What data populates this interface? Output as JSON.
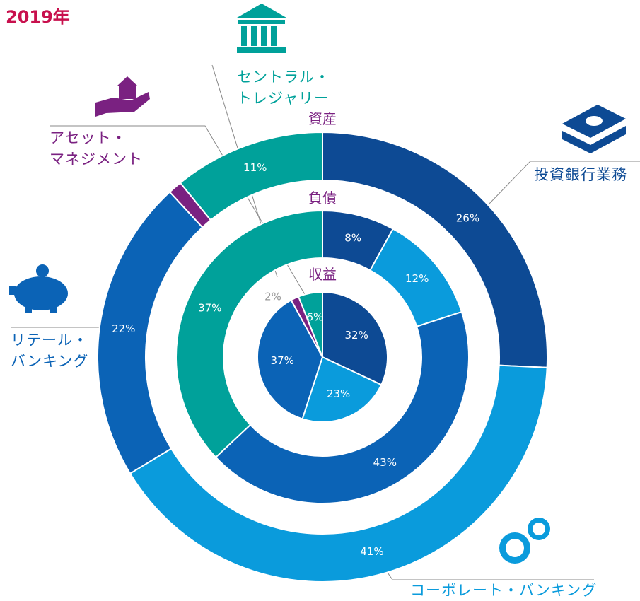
{
  "chart_data": {
    "type": "donut",
    "title": "2019年",
    "categories": [
      "資産",
      "負債",
      "収益"
    ],
    "series": [
      {
        "name": "投資銀行業務",
        "color": "#0d4a94",
        "values": [
          26,
          8,
          32
        ],
        "value_labels": [
          "26%",
          "8%",
          "32%"
        ]
      },
      {
        "name": "コーポレート・バンキング",
        "color": "#0a9bdc",
        "values": [
          41,
          12,
          23
        ],
        "value_labels": [
          "41%",
          "12%",
          "23%"
        ]
      },
      {
        "name": "リテール・\nバンキング",
        "color": "#0b63b6",
        "values": [
          22,
          43,
          37
        ],
        "value_labels": [
          "22%",
          "43%",
          "37%"
        ]
      },
      {
        "name": "アセット・\nマネジメント",
        "color": "#7a2181",
        "values": [
          1,
          null,
          2
        ],
        "value_labels": [
          null,
          null,
          "2%"
        ]
      },
      {
        "name": "セントラル・\nトレジャリー",
        "color": "#00a19a",
        "values": [
          11,
          37,
          6
        ],
        "value_labels": [
          "11%",
          "37%",
          "6%"
        ]
      }
    ]
  }
}
